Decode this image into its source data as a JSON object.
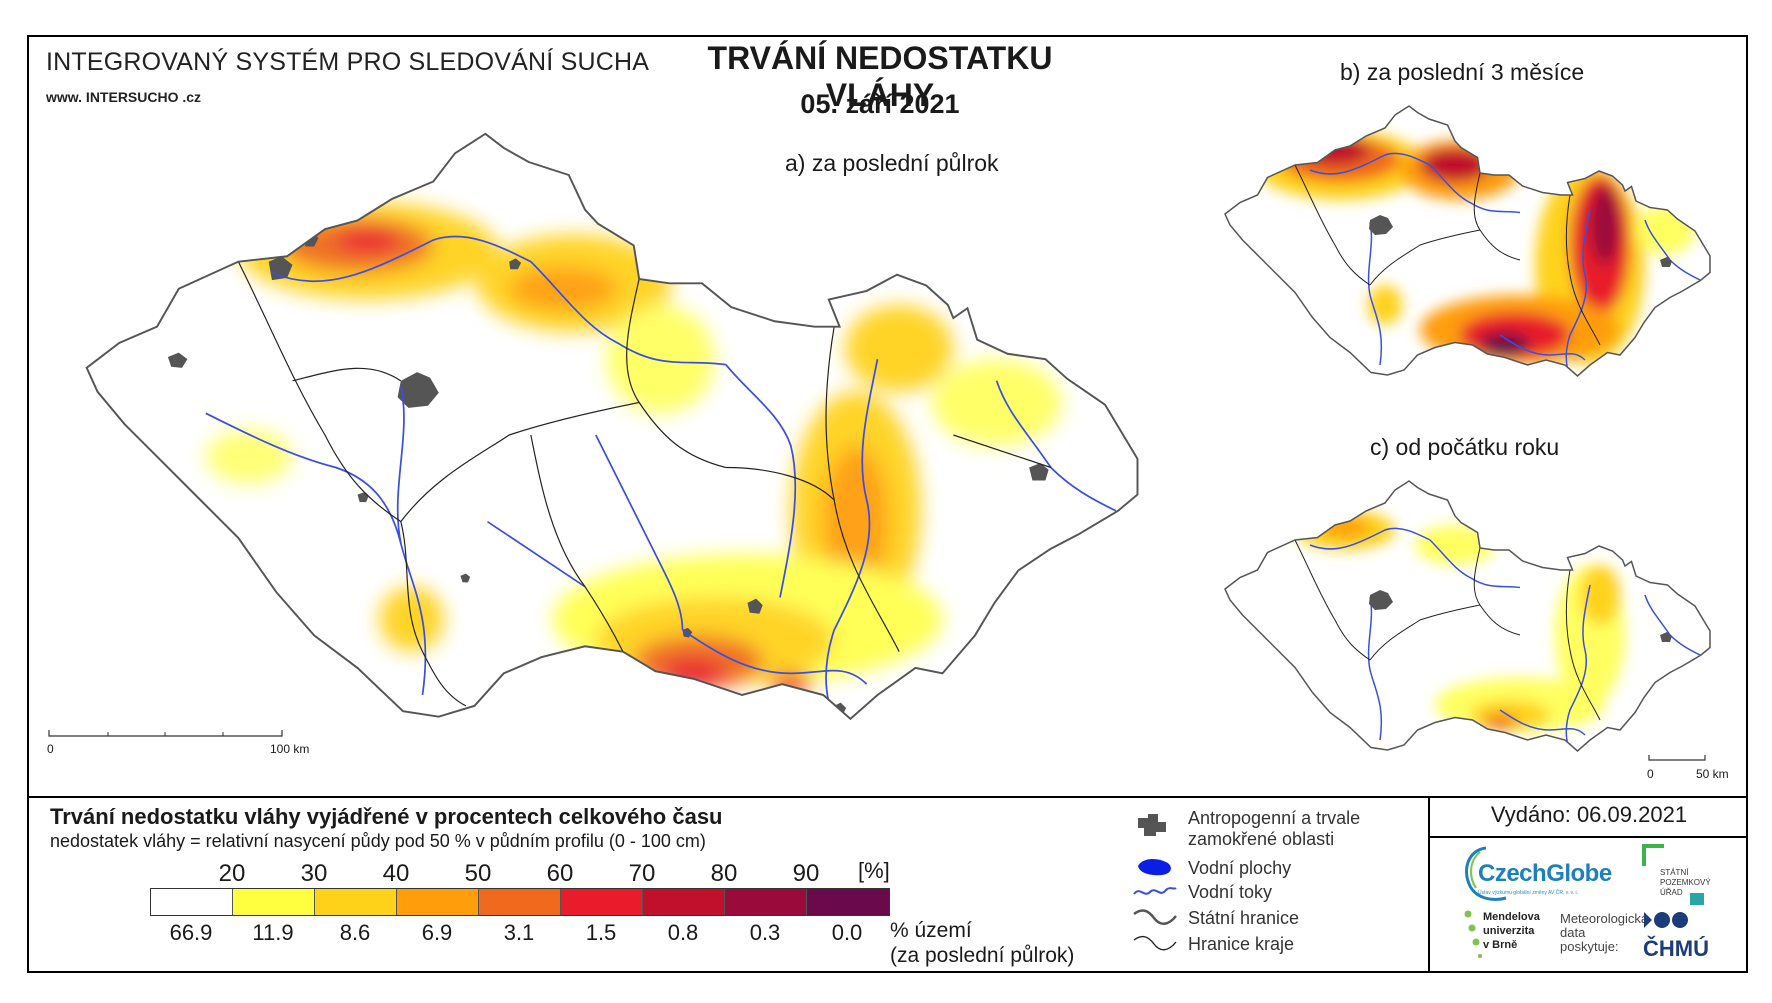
{
  "header": {
    "system_title": "INTEGROVANÝ SYSTÉM PRO SLEDOVÁNÍ SUCHA",
    "url": "www. INTERSUCHO .cz",
    "main_title": "TRVÁNÍ NEDOSTATKU VLÁHY",
    "date": "05. září 2021"
  },
  "panels": {
    "a_label": "a) za poslední půlrok",
    "b_label": "b) za poslední 3 měsíce",
    "c_label": "c) od počátku roku"
  },
  "scalebars": {
    "main_zero": "0",
    "main_end": "100 km",
    "small_zero": "0",
    "small_end": "50 km"
  },
  "legend": {
    "title": "Trvání nedostatku vláhy vyjádřené v procentech celkového času",
    "subtitle": "nedostatek vláhy = relativní nasycení půdy pod 50 % v půdním profilu (0 - 100 cm)",
    "unit": "[%]",
    "class_breaks": [
      "20",
      "30",
      "40",
      "50",
      "60",
      "70",
      "80",
      "90"
    ],
    "class_colors": [
      "#ffffff",
      "#ffff40",
      "#ffd21a",
      "#ff9d0a",
      "#f06a1e",
      "#e81c2a",
      "#c0102c",
      "#9a0a3a",
      "#6a0a4a"
    ],
    "area_percent": [
      "66.9",
      "11.9",
      "8.6",
      "6.9",
      "3.1",
      "1.5",
      "0.8",
      "0.3",
      "0.0"
    ],
    "area_label_line1": "% území",
    "area_label_line2": "(za poslední půlrok)"
  },
  "symbols": {
    "anthropogenic_line1": "Antropogenní a trvale",
    "anthropogenic_line2": "zamokřené oblasti",
    "water_bodies": "Vodní plochy",
    "water_streams": "Vodní toky",
    "state_border": "Státní hranice",
    "region_border": "Hranice kraje"
  },
  "footer": {
    "issued": "Vydáno: 06.09.2021",
    "czechglobe": "CzechGlobe",
    "czechglobe_sub": "Ústav výzkumu globální změny AV ČR, v. v. i.",
    "spu_line1": "STÁTNÍ",
    "spu_line2": "POZEMKOVÝ",
    "spu_line3": "ÚŘAD",
    "mendel_line1": "Mendelova",
    "mendel_line2": "univerzita",
    "mendel_line3": "v Brně",
    "meteo_line1": "Meteorologická",
    "meteo_line2": "data",
    "meteo_line3": "poskytuje:",
    "chmu": "ČHMÚ"
  },
  "colors": {
    "river": "#3a4fe0",
    "urban": "#555555",
    "border": "#222222"
  }
}
